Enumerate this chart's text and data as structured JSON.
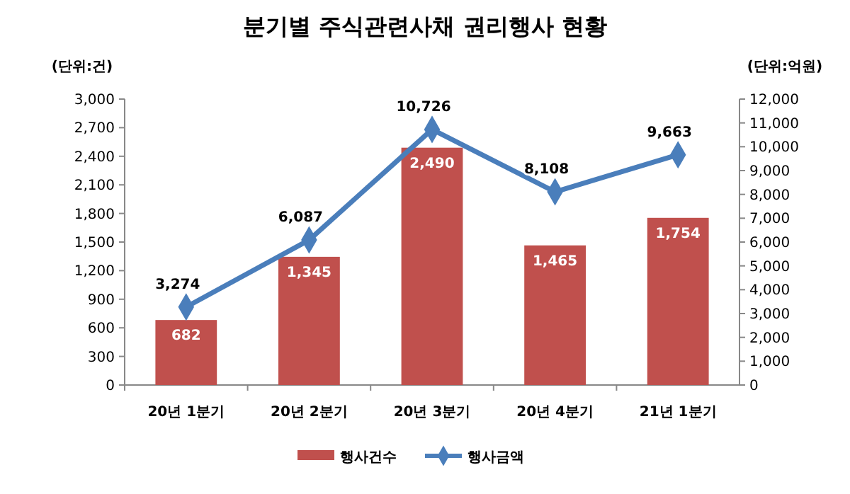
{
  "chart_data": {
    "type": "bar",
    "title": "분기별 주식관련사채 권리행사 현황",
    "ylabel": "(단위:건)",
    "y2label": "(단위:억원)",
    "categories": [
      "20년 1분기",
      "20년 2분기",
      "20년 3분기",
      "20년 4분기",
      "21년 1분기"
    ],
    "series": [
      {
        "name": "행사건수",
        "color": "#c0504d",
        "values": [
          682,
          1345,
          2490,
          1465,
          1754
        ],
        "value_labels": [
          "682",
          "1,345",
          "2,490",
          "1,465",
          "1,754"
        ]
      },
      {
        "name": "행사금액",
        "type": "line",
        "axis": "y2",
        "color": "#4a7ebb",
        "marker": "diamond",
        "values": [
          3274,
          6087,
          10726,
          8108,
          9663
        ],
        "value_labels": [
          "3,274",
          "6,087",
          "10,726",
          "8,108",
          "9,663"
        ]
      }
    ],
    "ylim": [
      0,
      3000
    ],
    "yticks": [
      0,
      300,
      600,
      900,
      {
        "value": 1200,
        "label": "1,200"
      },
      {
        "value": 1500,
        "label": "1,500"
      },
      {
        "value": 1800,
        "label": "1,800"
      },
      {
        "value": 2100,
        "label": "2,100"
      },
      {
        "value": 2400,
        "label": "2,400"
      },
      {
        "value": 2700,
        "label": "2,700"
      },
      {
        "value": 3000,
        "label": "3,000"
      }
    ],
    "y2lim": [
      0,
      12000
    ],
    "y2ticks": [
      0,
      {
        "value": 1000,
        "label": "1,000"
      },
      {
        "value": 2000,
        "label": "2,000"
      },
      {
        "value": 3000,
        "label": "3,000"
      },
      {
        "value": 4000,
        "label": "4,000"
      },
      {
        "value": 5000,
        "label": "5,000"
      },
      {
        "value": 6000,
        "label": "6,000"
      },
      {
        "value": 7000,
        "label": "7,000"
      },
      {
        "value": 8000,
        "label": "8,000"
      },
      {
        "value": 9000,
        "label": "9,000"
      },
      {
        "value": 10000,
        "label": "10,000"
      },
      {
        "value": 11000,
        "label": "11,000"
      },
      {
        "value": 12000,
        "label": "12,000"
      }
    ],
    "grid": false,
    "legend": "bottom"
  }
}
